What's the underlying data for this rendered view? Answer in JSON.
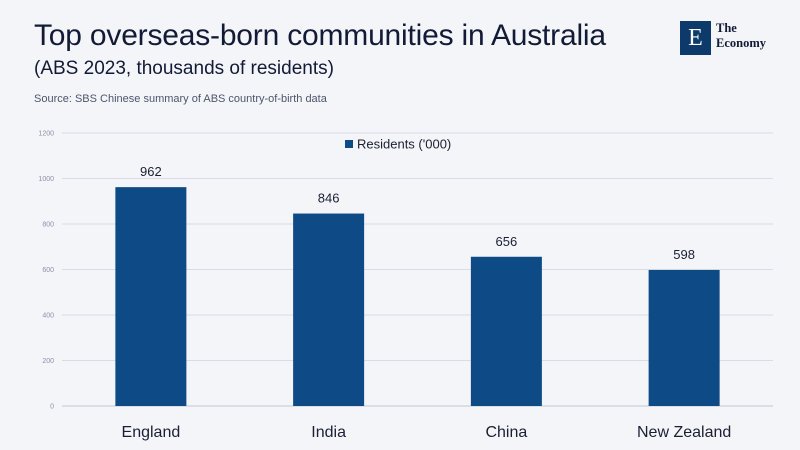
{
  "header": {
    "title": "Top overseas-born communities in Australia",
    "subtitle": "(ABS 2023, thousands of residents)",
    "source": "Source: SBS Chinese summary of ABS country-of-birth data"
  },
  "logo": {
    "letter": "E",
    "line1": "The",
    "line2": "Economy"
  },
  "colors": {
    "bar": "#0e4a85",
    "grid": "#d9dce4",
    "axis": "#c4c7d2"
  },
  "chart_data": {
    "type": "bar",
    "categories": [
      "England",
      "India",
      "China",
      "New Zealand"
    ],
    "series": [
      {
        "name": "Residents ('000)",
        "values": [
          962,
          846,
          656,
          598
        ]
      }
    ],
    "ylim": [
      0,
      1200
    ],
    "yticks": [
      0,
      200,
      400,
      600,
      800,
      1000,
      1200
    ],
    "data_labels": [
      "962",
      "846",
      "656",
      "598"
    ],
    "legend": "top-center",
    "grid": true
  }
}
